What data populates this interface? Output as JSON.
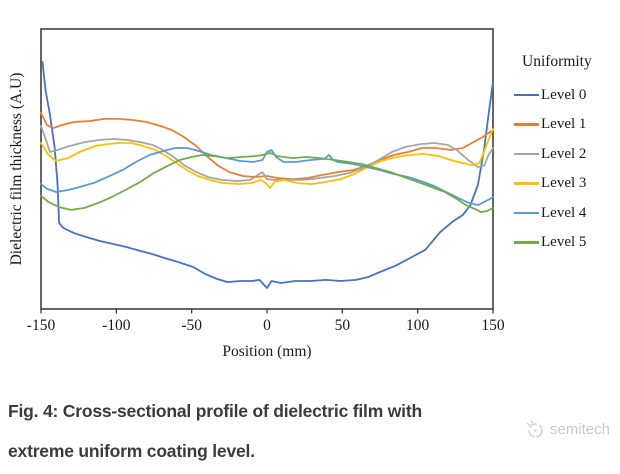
{
  "figure": {
    "caption_line1": "Fig. 4: Cross-sectional profile of dielectric film with",
    "caption_line2": "extreme uniform coating level.",
    "watermark": "semitech"
  },
  "chart_data": {
    "type": "line",
    "title": "",
    "xlabel": "Position (mm)",
    "ylabel": "Dielectric film thickness (A.U)",
    "xlim": [
      -150,
      150
    ],
    "x_ticks": [
      -150,
      -100,
      -50,
      0,
      50,
      100,
      150
    ],
    "ylim": [
      0,
      100
    ],
    "y_axis_note": "arbitrary units (A.U), no numeric tick labels",
    "grid": false,
    "legend_title": "Uniformity",
    "legend_position": "right",
    "axis_color": "#3f3f3f",
    "series": [
      {
        "name": "Level 0",
        "color": "#4472C4",
        "points": [
          [
            -149,
            88.2
          ],
          [
            -147,
            78.2
          ],
          [
            -144,
            69.3
          ],
          [
            -141,
            57.9
          ],
          [
            -139,
            44.3
          ],
          [
            -138,
            30.7
          ],
          [
            -135,
            28.9
          ],
          [
            -131,
            27.9
          ],
          [
            -128,
            27.1
          ],
          [
            -120,
            25.7
          ],
          [
            -111,
            24.3
          ],
          [
            -102,
            23.2
          ],
          [
            -93,
            22.1
          ],
          [
            -84,
            20.7
          ],
          [
            -76,
            19.6
          ],
          [
            -68,
            18.2
          ],
          [
            -59,
            16.8
          ],
          [
            -49,
            15.0
          ],
          [
            -41,
            12.5
          ],
          [
            -33,
            10.7
          ],
          [
            -26,
            9.6
          ],
          [
            -18,
            10.0
          ],
          [
            -10,
            10.0
          ],
          [
            -5,
            10.4
          ],
          [
            -2,
            8.6
          ],
          [
            0,
            7.5
          ],
          [
            3,
            10.0
          ],
          [
            9,
            9.3
          ],
          [
            19,
            10.0
          ],
          [
            29,
            10.0
          ],
          [
            39,
            10.4
          ],
          [
            49,
            10.0
          ],
          [
            59,
            10.4
          ],
          [
            67,
            11.4
          ],
          [
            75,
            13.2
          ],
          [
            85,
            15.4
          ],
          [
            95,
            18.2
          ],
          [
            105,
            21.1
          ],
          [
            115,
            27.5
          ],
          [
            123,
            31.1
          ],
          [
            130,
            33.6
          ],
          [
            135,
            37.1
          ],
          [
            140,
            44.3
          ],
          [
            144,
            56.8
          ],
          [
            147,
            69.3
          ],
          [
            150,
            81.1
          ]
        ]
      },
      {
        "name": "Level 1",
        "color": "#ED7D31",
        "points": [
          [
            -150,
            70.0
          ],
          [
            -146,
            65.7
          ],
          [
            -142,
            64.6
          ],
          [
            -136,
            65.7
          ],
          [
            -128,
            66.8
          ],
          [
            -118,
            67.1
          ],
          [
            -108,
            67.9
          ],
          [
            -98,
            67.9
          ],
          [
            -89,
            67.5
          ],
          [
            -80,
            66.8
          ],
          [
            -71,
            65.4
          ],
          [
            -63,
            63.9
          ],
          [
            -55,
            61.4
          ],
          [
            -47,
            58.2
          ],
          [
            -40,
            54.6
          ],
          [
            -33,
            51.4
          ],
          [
            -25,
            48.9
          ],
          [
            -16,
            47.5
          ],
          [
            -8,
            47.1
          ],
          [
            0,
            47.5
          ],
          [
            7,
            46.8
          ],
          [
            17,
            46.4
          ],
          [
            27,
            46.8
          ],
          [
            37,
            47.9
          ],
          [
            47,
            48.9
          ],
          [
            57,
            49.6
          ],
          [
            66,
            51.1
          ],
          [
            75,
            53.2
          ],
          [
            84,
            55.0
          ],
          [
            94,
            56.1
          ],
          [
            103,
            57.5
          ],
          [
            112,
            57.5
          ],
          [
            122,
            56.8
          ],
          [
            130,
            57.5
          ],
          [
            136,
            59.3
          ],
          [
            143,
            61.4
          ],
          [
            150,
            63.9
          ]
        ]
      },
      {
        "name": "Level 2",
        "color": "#A5A5A5",
        "points": [
          [
            -150,
            65.4
          ],
          [
            -146,
            59.3
          ],
          [
            -144,
            56.1
          ],
          [
            -139,
            56.8
          ],
          [
            -131,
            58.2
          ],
          [
            -121,
            59.6
          ],
          [
            -111,
            60.4
          ],
          [
            -102,
            60.7
          ],
          [
            -93,
            60.4
          ],
          [
            -84,
            59.6
          ],
          [
            -76,
            58.6
          ],
          [
            -69,
            56.8
          ],
          [
            -62,
            54.3
          ],
          [
            -55,
            51.4
          ],
          [
            -47,
            48.9
          ],
          [
            -39,
            47.1
          ],
          [
            -30,
            46.1
          ],
          [
            -20,
            45.7
          ],
          [
            -11,
            46.1
          ],
          [
            -6,
            47.9
          ],
          [
            -3,
            48.9
          ],
          [
            0,
            46.4
          ],
          [
            5,
            46.1
          ],
          [
            15,
            46.1
          ],
          [
            25,
            46.1
          ],
          [
            35,
            46.8
          ],
          [
            45,
            47.5
          ],
          [
            55,
            48.6
          ],
          [
            64,
            50.4
          ],
          [
            74,
            53.2
          ],
          [
            83,
            56.1
          ],
          [
            92,
            57.9
          ],
          [
            102,
            58.9
          ],
          [
            111,
            59.3
          ],
          [
            120,
            58.6
          ],
          [
            126,
            56.8
          ],
          [
            132,
            53.9
          ],
          [
            137,
            51.8
          ],
          [
            140,
            50.7
          ],
          [
            144,
            51.1
          ],
          [
            147,
            55.0
          ],
          [
            150,
            57.5
          ]
        ]
      },
      {
        "name": "Level 3",
        "color": "#FFC000",
        "points": [
          [
            -150,
            59.3
          ],
          [
            -145,
            55.0
          ],
          [
            -140,
            52.9
          ],
          [
            -132,
            53.9
          ],
          [
            -123,
            56.4
          ],
          [
            -114,
            58.2
          ],
          [
            -106,
            58.9
          ],
          [
            -98,
            59.3
          ],
          [
            -90,
            59.3
          ],
          [
            -82,
            58.2
          ],
          [
            -74,
            56.8
          ],
          [
            -67,
            54.6
          ],
          [
            -60,
            52.1
          ],
          [
            -53,
            49.6
          ],
          [
            -46,
            47.5
          ],
          [
            -38,
            46.1
          ],
          [
            -29,
            45.0
          ],
          [
            -19,
            44.6
          ],
          [
            -10,
            45.0
          ],
          [
            -4,
            46.1
          ],
          [
            -1,
            45.0
          ],
          [
            2,
            43.2
          ],
          [
            5,
            45.4
          ],
          [
            11,
            46.1
          ],
          [
            20,
            45.0
          ],
          [
            30,
            44.6
          ],
          [
            39,
            45.4
          ],
          [
            49,
            46.4
          ],
          [
            58,
            48.2
          ],
          [
            67,
            50.7
          ],
          [
            76,
            52.9
          ],
          [
            86,
            54.3
          ],
          [
            95,
            55.0
          ],
          [
            104,
            55.4
          ],
          [
            114,
            54.6
          ],
          [
            122,
            53.2
          ],
          [
            130,
            52.1
          ],
          [
            136,
            51.4
          ],
          [
            141,
            52.1
          ],
          [
            144,
            56.1
          ],
          [
            147,
            60.4
          ],
          [
            150,
            64.3
          ]
        ]
      },
      {
        "name": "Level 4",
        "color": "#5B9BD5",
        "points": [
          [
            -150,
            44.6
          ],
          [
            -146,
            42.9
          ],
          [
            -140,
            41.8
          ],
          [
            -132,
            42.5
          ],
          [
            -124,
            43.6
          ],
          [
            -115,
            45.0
          ],
          [
            -106,
            47.1
          ],
          [
            -96,
            49.6
          ],
          [
            -87,
            52.5
          ],
          [
            -78,
            55.0
          ],
          [
            -69,
            56.4
          ],
          [
            -61,
            57.5
          ],
          [
            -53,
            57.5
          ],
          [
            -45,
            56.4
          ],
          [
            -37,
            55.0
          ],
          [
            -27,
            53.9
          ],
          [
            -18,
            52.9
          ],
          [
            -9,
            52.5
          ],
          [
            -3,
            53.2
          ],
          [
            0,
            56.1
          ],
          [
            3,
            56.8
          ],
          [
            6,
            54.3
          ],
          [
            11,
            52.5
          ],
          [
            19,
            52.5
          ],
          [
            29,
            53.2
          ],
          [
            38,
            53.6
          ],
          [
            41,
            55.0
          ],
          [
            44,
            53.2
          ],
          [
            47,
            52.5
          ],
          [
            57,
            51.8
          ],
          [
            66,
            50.7
          ],
          [
            75,
            49.6
          ],
          [
            84,
            48.2
          ],
          [
            94,
            47.1
          ],
          [
            102,
            45.7
          ],
          [
            111,
            43.9
          ],
          [
            119,
            41.8
          ],
          [
            127,
            39.6
          ],
          [
            134,
            37.9
          ],
          [
            140,
            37.1
          ],
          [
            144,
            38.2
          ],
          [
            148,
            39.3
          ],
          [
            150,
            40.0
          ]
        ]
      },
      {
        "name": "Level 5",
        "color": "#70AD47",
        "points": [
          [
            -150,
            40.4
          ],
          [
            -145,
            38.2
          ],
          [
            -138,
            36.4
          ],
          [
            -130,
            35.4
          ],
          [
            -121,
            36.1
          ],
          [
            -112,
            37.9
          ],
          [
            -103,
            40.0
          ],
          [
            -94,
            42.5
          ],
          [
            -84,
            45.4
          ],
          [
            -75,
            48.6
          ],
          [
            -66,
            51.1
          ],
          [
            -58,
            53.2
          ],
          [
            -50,
            54.3
          ],
          [
            -43,
            55.0
          ],
          [
            -35,
            54.6
          ],
          [
            -26,
            53.9
          ],
          [
            -17,
            54.3
          ],
          [
            -8,
            54.6
          ],
          [
            -3,
            55.0
          ],
          [
            2,
            55.7
          ],
          [
            7,
            54.6
          ],
          [
            17,
            53.9
          ],
          [
            26,
            54.3
          ],
          [
            35,
            53.9
          ],
          [
            45,
            53.2
          ],
          [
            54,
            52.5
          ],
          [
            63,
            51.8
          ],
          [
            72,
            50.4
          ],
          [
            82,
            48.9
          ],
          [
            91,
            47.1
          ],
          [
            100,
            45.4
          ],
          [
            109,
            43.6
          ],
          [
            118,
            41.8
          ],
          [
            126,
            39.3
          ],
          [
            132,
            37.1
          ],
          [
            138,
            35.7
          ],
          [
            142,
            34.6
          ],
          [
            146,
            35.0
          ],
          [
            150,
            36.1
          ]
        ]
      }
    ]
  }
}
